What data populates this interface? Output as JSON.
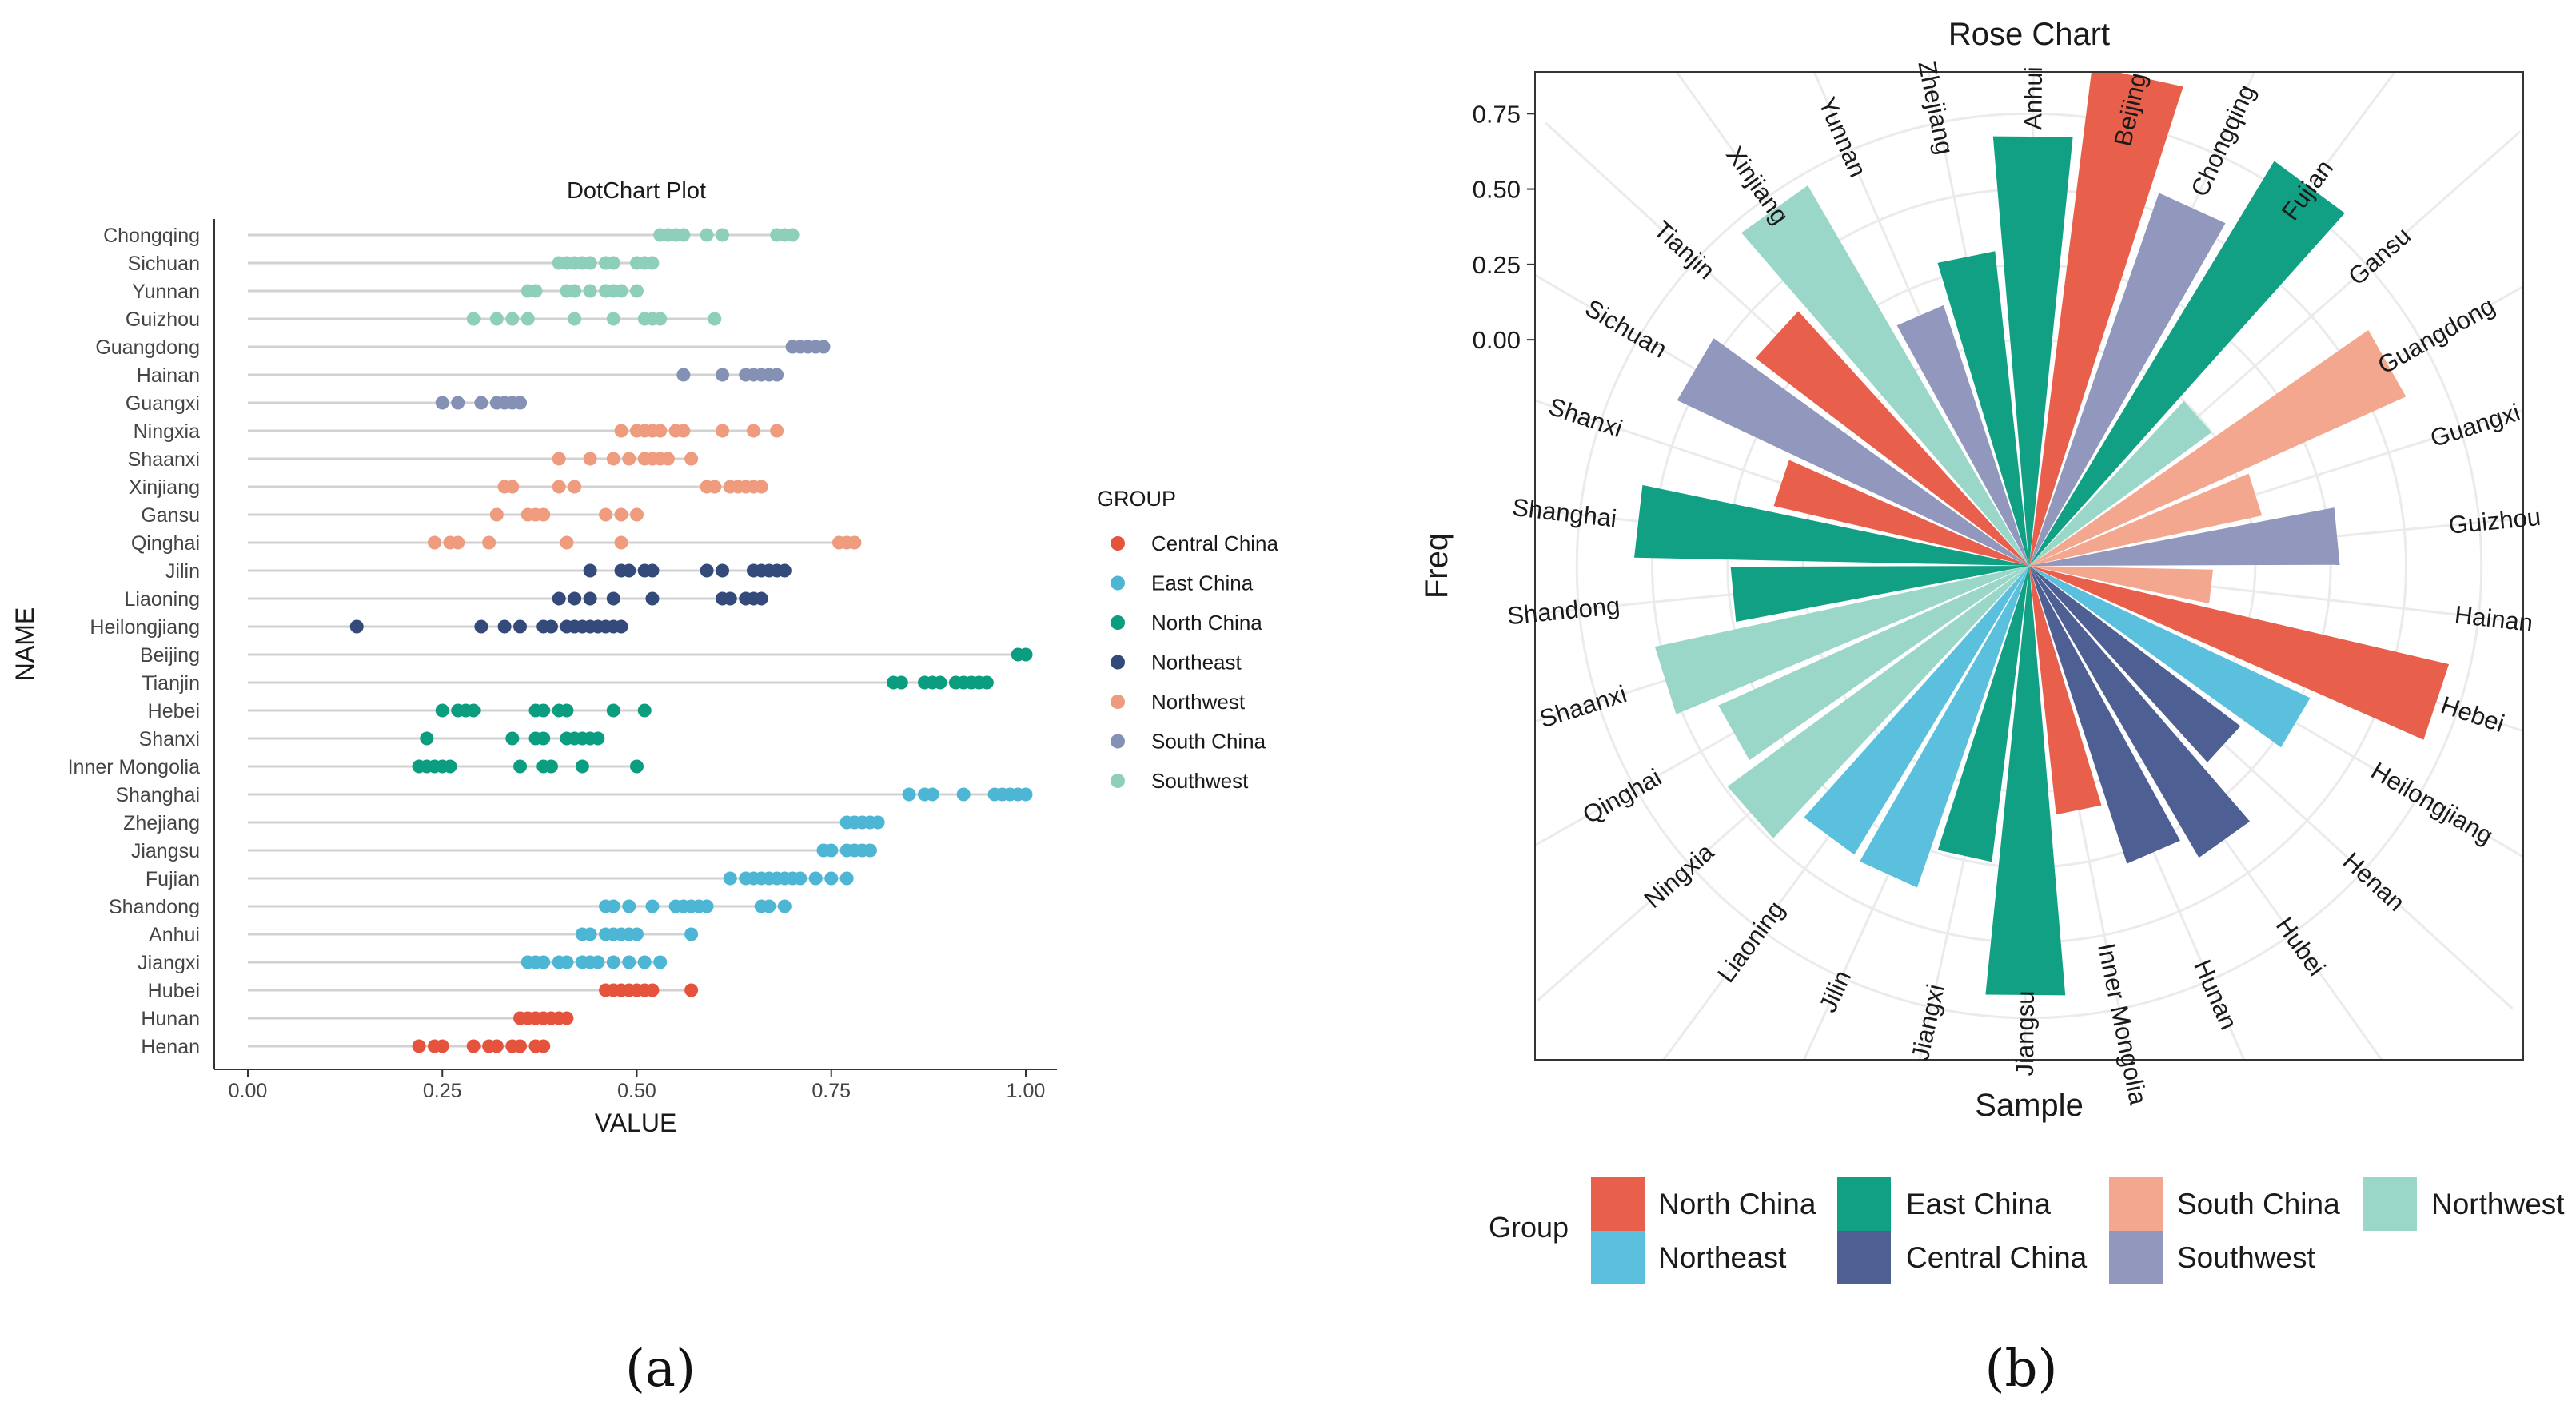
{
  "panels": {
    "a": "(a)",
    "b": "(b)"
  },
  "chart_data": [
    {
      "type": "scatter",
      "title": "DotChart Plot",
      "xlabel": "VALUE",
      "ylabel": "NAME",
      "xlim": [
        0,
        1
      ],
      "xticks": [
        "0.00",
        "0.25",
        "0.50",
        "0.75",
        "1.00"
      ],
      "legend": {
        "title": "GROUP",
        "position": "right",
        "entries": [
          "Central China",
          "East China",
          "North China",
          "Northeast",
          "Northwest",
          "South China",
          "Southwest"
        ],
        "colors": [
          "#e5533d",
          "#4db6d5",
          "#0a9d7f",
          "#344a7a",
          "#ee9b7e",
          "#8491b4",
          "#8ecfbc"
        ]
      },
      "categories": [
        "Chongqing",
        "Sichuan",
        "Yunnan",
        "Guizhou",
        "Guangdong",
        "Hainan",
        "Guangxi",
        "Ningxia",
        "Shaanxi",
        "Xinjiang",
        "Gansu",
        "Qinghai",
        "Jilin",
        "Liaoning",
        "Heilongjiang",
        "Beijing",
        "Tianjin",
        "Hebei",
        "Shanxi",
        "Inner Mongolia",
        "Shanghai",
        "Zhejiang",
        "Jiangsu",
        "Fujian",
        "Shandong",
        "Anhui",
        "Jiangxi",
        "Hubei",
        "Hunan",
        "Henan"
      ],
      "rows": [
        {
          "name": "Chongqing",
          "group": "Southwest",
          "values": [
            0.53,
            0.54,
            0.55,
            0.56,
            0.59,
            0.61,
            0.68,
            0.69,
            0.7
          ]
        },
        {
          "name": "Sichuan",
          "group": "Southwest",
          "values": [
            0.4,
            0.41,
            0.42,
            0.43,
            0.44,
            0.46,
            0.47,
            0.5,
            0.51,
            0.52
          ]
        },
        {
          "name": "Yunnan",
          "group": "Southwest",
          "values": [
            0.36,
            0.37,
            0.41,
            0.42,
            0.44,
            0.46,
            0.47,
            0.48,
            0.5
          ]
        },
        {
          "name": "Guizhou",
          "group": "Southwest",
          "values": [
            0.29,
            0.32,
            0.34,
            0.36,
            0.42,
            0.47,
            0.51,
            0.52,
            0.53,
            0.6
          ]
        },
        {
          "name": "Guangdong",
          "group": "South China",
          "values": [
            0.7,
            0.71,
            0.72,
            0.73,
            0.74
          ]
        },
        {
          "name": "Hainan",
          "group": "South China",
          "values": [
            0.56,
            0.61,
            0.64,
            0.65,
            0.66,
            0.67,
            0.68
          ]
        },
        {
          "name": "Guangxi",
          "group": "South China",
          "values": [
            0.25,
            0.27,
            0.3,
            0.32,
            0.33,
            0.34,
            0.35
          ]
        },
        {
          "name": "Ningxia",
          "group": "Northwest",
          "values": [
            0.48,
            0.5,
            0.51,
            0.52,
            0.53,
            0.55,
            0.56,
            0.61,
            0.65,
            0.68
          ]
        },
        {
          "name": "Shaanxi",
          "group": "Northwest",
          "values": [
            0.4,
            0.44,
            0.47,
            0.49,
            0.51,
            0.52,
            0.53,
            0.54,
            0.57
          ]
        },
        {
          "name": "Xinjiang",
          "group": "Northwest",
          "values": [
            0.33,
            0.34,
            0.4,
            0.42,
            0.59,
            0.6,
            0.62,
            0.63,
            0.64,
            0.65,
            0.66
          ]
        },
        {
          "name": "Gansu",
          "group": "Northwest",
          "values": [
            0.32,
            0.36,
            0.37,
            0.38,
            0.46,
            0.48,
            0.5
          ]
        },
        {
          "name": "Qinghai",
          "group": "Northwest",
          "values": [
            0.24,
            0.26,
            0.27,
            0.31,
            0.41,
            0.48,
            0.76,
            0.77,
            0.78
          ]
        },
        {
          "name": "Jilin",
          "group": "Northeast",
          "values": [
            0.44,
            0.48,
            0.49,
            0.51,
            0.52,
            0.59,
            0.61,
            0.65,
            0.66,
            0.67,
            0.68,
            0.69
          ]
        },
        {
          "name": "Liaoning",
          "group": "Northeast",
          "values": [
            0.4,
            0.42,
            0.44,
            0.47,
            0.52,
            0.61,
            0.62,
            0.64,
            0.65,
            0.66
          ]
        },
        {
          "name": "Heilongjiang",
          "group": "Northeast",
          "values": [
            0.14,
            0.3,
            0.33,
            0.35,
            0.38,
            0.39,
            0.41,
            0.42,
            0.43,
            0.44,
            0.45,
            0.46,
            0.47,
            0.48
          ]
        },
        {
          "name": "Beijing",
          "group": "North China",
          "values": [
            0.99,
            1.0
          ]
        },
        {
          "name": "Tianjin",
          "group": "North China",
          "values": [
            0.83,
            0.84,
            0.87,
            0.88,
            0.89,
            0.91,
            0.92,
            0.93,
            0.94,
            0.95
          ]
        },
        {
          "name": "Hebei",
          "group": "North China",
          "values": [
            0.25,
            0.27,
            0.28,
            0.29,
            0.37,
            0.38,
            0.4,
            0.41,
            0.47,
            0.51
          ]
        },
        {
          "name": "Shanxi",
          "group": "North China",
          "values": [
            0.23,
            0.34,
            0.37,
            0.38,
            0.41,
            0.42,
            0.43,
            0.44,
            0.45
          ]
        },
        {
          "name": "Inner Mongolia",
          "group": "North China",
          "values": [
            0.22,
            0.23,
            0.24,
            0.25,
            0.26,
            0.35,
            0.38,
            0.39,
            0.43,
            0.5
          ]
        },
        {
          "name": "Shanghai",
          "group": "East China",
          "values": [
            0.85,
            0.87,
            0.88,
            0.92,
            0.96,
            0.97,
            0.98,
            0.99,
            1.0
          ]
        },
        {
          "name": "Zhejiang",
          "group": "East China",
          "values": [
            0.77,
            0.78,
            0.79,
            0.8,
            0.81
          ]
        },
        {
          "name": "Jiangsu",
          "group": "East China",
          "values": [
            0.74,
            0.75,
            0.77,
            0.78,
            0.79,
            0.8
          ]
        },
        {
          "name": "Fujian",
          "group": "East China",
          "values": [
            0.62,
            0.64,
            0.65,
            0.66,
            0.67,
            0.68,
            0.69,
            0.7,
            0.71,
            0.73,
            0.75,
            0.77
          ]
        },
        {
          "name": "Shandong",
          "group": "East China",
          "values": [
            0.46,
            0.47,
            0.49,
            0.52,
            0.55,
            0.56,
            0.57,
            0.58,
            0.59,
            0.66,
            0.67,
            0.69
          ]
        },
        {
          "name": "Anhui",
          "group": "East China",
          "values": [
            0.43,
            0.44,
            0.46,
            0.47,
            0.48,
            0.49,
            0.5,
            0.57
          ]
        },
        {
          "name": "Jiangxi",
          "group": "East China",
          "values": [
            0.36,
            0.37,
            0.38,
            0.4,
            0.41,
            0.43,
            0.44,
            0.45,
            0.47,
            0.49,
            0.51,
            0.53
          ]
        },
        {
          "name": "Hubei",
          "group": "Central China",
          "values": [
            0.46,
            0.47,
            0.48,
            0.49,
            0.5,
            0.51,
            0.52,
            0.57
          ]
        },
        {
          "name": "Hunan",
          "group": "Central China",
          "values": [
            0.35,
            0.36,
            0.37,
            0.38,
            0.39,
            0.4,
            0.41
          ]
        },
        {
          "name": "Henan",
          "group": "Central China",
          "values": [
            0.22,
            0.24,
            0.25,
            0.29,
            0.31,
            0.32,
            0.34,
            0.35,
            0.37,
            0.38
          ]
        }
      ]
    },
    {
      "type": "bar",
      "subtype": "polar-rose",
      "title": "Rose Chart",
      "xlabel": "Sample",
      "ylabel": "Freq",
      "ylim": [
        -0.75,
        1.0
      ],
      "yticks": [
        "0.75",
        "0.50",
        "0.25",
        "0.00"
      ],
      "yticks_values": [
        0.75,
        0.5,
        0.25,
        0.0
      ],
      "legend": {
        "title": "Group",
        "position": "bottom",
        "entries": [
          "North China",
          "Northeast",
          "East China",
          "Central China",
          "South China",
          "Southwest",
          "Northwest"
        ],
        "colors": [
          "#e8604c",
          "#5bc0de",
          "#12a085",
          "#4e5f93",
          "#f4a78f",
          "#9298bd",
          "#9ad7c8"
        ]
      },
      "categories": [
        "Anhui",
        "Beijing",
        "Chongqing",
        "Fujian",
        "Gansu",
        "Guangdong",
        "Guangxi",
        "Guizhou",
        "Hainan",
        "Hebei",
        "Heilongjiang",
        "Henan",
        "Hubei",
        "Hunan",
        "Inner Mongolia",
        "Jiangsu",
        "Jiangxi",
        "Jilin",
        "Liaoning",
        "Ningxia",
        "Qinghai",
        "Shaanxi",
        "Shandong",
        "Shanghai",
        "Shanxi",
        "Sichuan",
        "Tianjin",
        "Xinjiang",
        "Yunnan",
        "Zhejiang"
      ],
      "groups": [
        "East China",
        "North China",
        "Southwest",
        "East China",
        "Northwest",
        "South China",
        "South China",
        "Southwest",
        "South China",
        "North China",
        "Northeast",
        "Central China",
        "Central China",
        "Central China",
        "North China",
        "East China",
        "East China",
        "Northeast",
        "Northeast",
        "Northwest",
        "Northwest",
        "Northwest",
        "East China",
        "East China",
        "North China",
        "Southwest",
        "North China",
        "Northwest",
        "Southwest",
        "East China"
      ],
      "values": [
        0.68,
        0.92,
        0.56,
        0.82,
        0.0,
        0.62,
        0.04,
        0.28,
        -0.14,
        0.68,
        0.28,
        0.13,
        0.37,
        0.29,
        0.08,
        0.68,
        0.24,
        0.38,
        0.37,
        0.49,
        0.38,
        0.52,
        0.24,
        0.56,
        0.12,
        0.54,
        0.39,
        0.71,
        0.16,
        0.3
      ]
    }
  ]
}
